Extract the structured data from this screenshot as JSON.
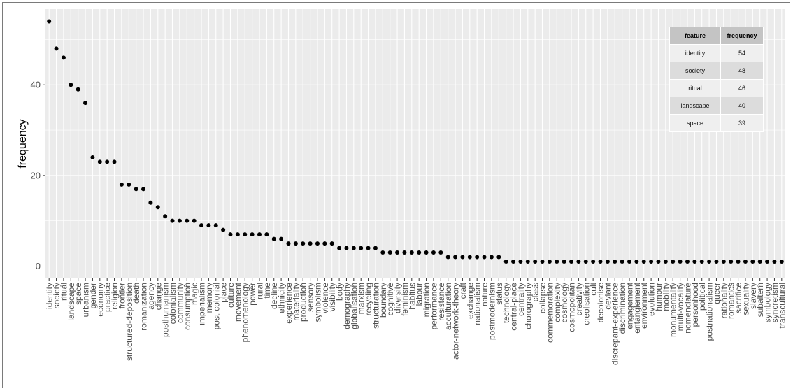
{
  "chart_data": {
    "type": "scatter",
    "xlabel": "",
    "ylabel": "frequency",
    "ylim": [
      -2.7,
      56.7
    ],
    "yticks": [
      0,
      20,
      40
    ],
    "grid": true,
    "categories": [
      "identity",
      "society",
      "ritual",
      "landscape",
      "space",
      "urbanism",
      "gender",
      "economy",
      "practice",
      "religion",
      "frontier",
      "structured-deposition",
      "death",
      "romanization",
      "agency",
      "change",
      "posthumanism",
      "colonialism",
      "community",
      "consumption",
      "magic",
      "imperialism",
      "memory",
      "post-colonial",
      "place",
      "culture",
      "movement",
      "phenomenology",
      "power",
      "rural",
      "time",
      "decline",
      "ethnicity",
      "experience",
      "materiality",
      "production",
      "sensory",
      "symbolism",
      "violence",
      "visibility",
      "body",
      "demography",
      "globalisation",
      "marxism",
      "recycling",
      "structuration",
      "boundary",
      "cognitive",
      "diversity",
      "feminism",
      "habitus",
      "labour",
      "migration",
      "performance",
      "resistance",
      "acculturation",
      "actor-network-theory",
      "craft",
      "exchange",
      "nationalism",
      "nature",
      "postmodernism",
      "status",
      "technology",
      "central-place",
      "centrality",
      "chorography",
      "class",
      "collapse",
      "commemoration",
      "complexity",
      "cosmology",
      "cosmopolitan",
      "creativity",
      "creolisation",
      "cult",
      "decolonise",
      "deviant",
      "discrepant-experience",
      "discrimination",
      "engagement",
      "entanglement",
      "environment",
      "evolution",
      "humour",
      "mobility",
      "monumentality",
      "multi-vocality",
      "nomenclature",
      "personhood",
      "political",
      "postnationalism",
      "queer",
      "rationality",
      "romantics",
      "sacrifice",
      "sexuality",
      "slavery",
      "subaltern",
      "symbology",
      "syncretism",
      "transcultural"
    ],
    "values": [
      54,
      48,
      46,
      40,
      39,
      36,
      24,
      23,
      23,
      23,
      18,
      18,
      17,
      17,
      14,
      13,
      11,
      10,
      10,
      10,
      10,
      9,
      9,
      9,
      8,
      7,
      7,
      7,
      7,
      7,
      7,
      6,
      6,
      5,
      5,
      5,
      5,
      5,
      5,
      5,
      4,
      4,
      4,
      4,
      4,
      4,
      3,
      3,
      3,
      3,
      3,
      3,
      3,
      3,
      3,
      2,
      2,
      2,
      2,
      2,
      2,
      2,
      2,
      1,
      1,
      1,
      1,
      1,
      1,
      1,
      1,
      1,
      1,
      1,
      1,
      1,
      1,
      1,
      1,
      1,
      1,
      1,
      1,
      1,
      1,
      1,
      1,
      1,
      1,
      1,
      1,
      1,
      1,
      1,
      1,
      1,
      1,
      1,
      1,
      1,
      1,
      1
    ]
  },
  "table": {
    "headers": [
      "feature",
      "frequency"
    ],
    "rows": [
      [
        "identity",
        "54"
      ],
      [
        "society",
        "48"
      ],
      [
        "ritual",
        "46"
      ],
      [
        "landscape",
        "40"
      ],
      [
        "space",
        "39"
      ]
    ]
  }
}
